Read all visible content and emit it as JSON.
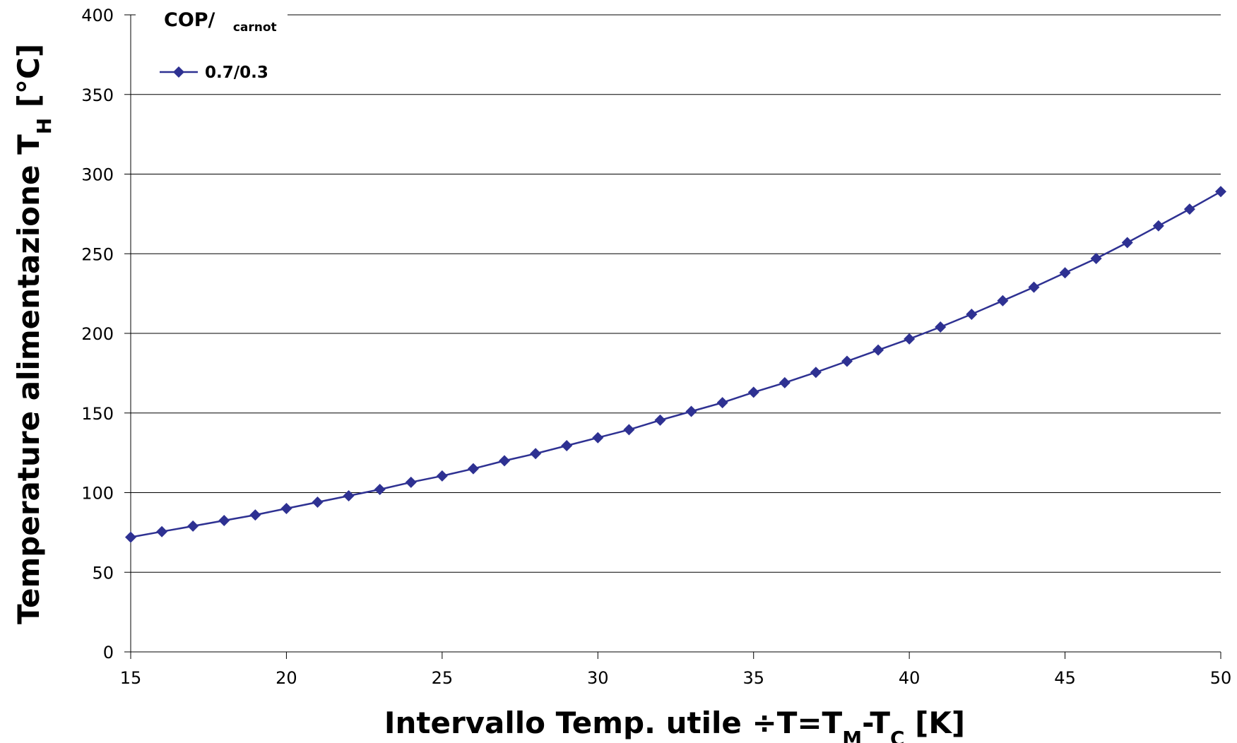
{
  "chart_data": {
    "type": "line",
    "xlabel": {
      "parts": [
        {
          "text": "Intervallo Temp. utile ",
          "sub": false
        },
        {
          "text": "÷",
          "sub": false
        },
        {
          "text": "T=T",
          "sub": false
        },
        {
          "text": "M",
          "sub": true
        },
        {
          "text": "-T",
          "sub": false
        },
        {
          "text": "C",
          "sub": true
        },
        {
          "text": " [K]",
          "sub": false
        }
      ]
    },
    "ylabel": {
      "parts": [
        {
          "text": "Temperature alimentazione T",
          "sub": false
        },
        {
          "text": "H",
          "sub": true
        },
        {
          "text": " [°C]",
          "sub": false
        }
      ]
    },
    "xlim": [
      15,
      50
    ],
    "ylim": [
      0,
      400
    ],
    "xticks": [
      15,
      20,
      25,
      30,
      35,
      40,
      45,
      50
    ],
    "yticks": [
      0,
      50,
      100,
      150,
      200,
      250,
      300,
      350,
      400
    ],
    "grid": "horizontal",
    "legend": {
      "position": "top-left",
      "title_main": "COP/",
      "title_sub": "carnot",
      "entries": [
        "0.7/0.3"
      ]
    },
    "series": [
      {
        "name": "0.7/0.3",
        "color": "#2e3192",
        "marker": "diamond",
        "x": [
          15,
          16,
          17,
          18,
          19,
          20,
          21,
          22,
          23,
          24,
          25,
          26,
          27,
          28,
          29,
          30,
          31,
          32,
          33,
          34,
          35,
          36,
          37,
          38,
          39,
          40,
          41,
          42,
          43,
          44,
          45,
          46,
          47,
          48,
          49,
          50
        ],
        "y": [
          72,
          75.5,
          79,
          82.5,
          86,
          90,
          94,
          98,
          102,
          106.5,
          110.5,
          115,
          120,
          124.5,
          129.5,
          134.5,
          139.5,
          145.5,
          151,
          156.5,
          163,
          169,
          175.5,
          182.5,
          189.5,
          196.5,
          204,
          212,
          220.5,
          229,
          238,
          247,
          257,
          267.5,
          278,
          289
        ]
      }
    ]
  }
}
